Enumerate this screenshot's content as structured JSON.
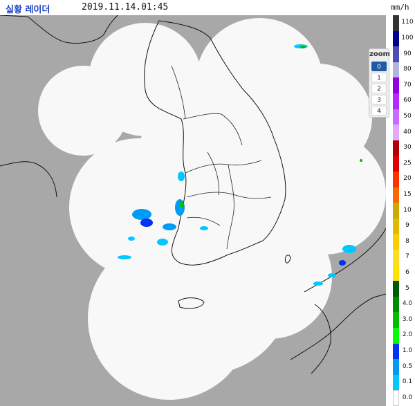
{
  "header": {
    "title": "실황 레이더",
    "timestamp": "2019.11.14.01:45",
    "unit": "mm/h"
  },
  "zoom": {
    "title": "zoom",
    "levels": [
      "0",
      "1",
      "2",
      "3",
      "4"
    ],
    "active_level": "0"
  },
  "legend": [
    {
      "label": "110",
      "color": "#333333"
    },
    {
      "label": "100",
      "color": "#000390"
    },
    {
      "label": "90",
      "color": "#4c4eb1"
    },
    {
      "label": "80",
      "color": "#b3b4de"
    },
    {
      "label": "70",
      "color": "#9300e4"
    },
    {
      "label": "60",
      "color": "#b329ff"
    },
    {
      "label": "50",
      "color": "#c969ff"
    },
    {
      "label": "40",
      "color": "#e0a9ff"
    },
    {
      "label": "30",
      "color": "#b40000"
    },
    {
      "label": "25",
      "color": "#e00000"
    },
    {
      "label": "20",
      "color": "#ff3300"
    },
    {
      "label": "15",
      "color": "#ff6600"
    },
    {
      "label": "10",
      "color": "#ccaa00"
    },
    {
      "label": "9",
      "color": "#e0b900"
    },
    {
      "label": "8",
      "color": "#f9cd00"
    },
    {
      "label": "7",
      "color": "#ffdc1f"
    },
    {
      "label": "6",
      "color": "#ffe100"
    },
    {
      "label": "5",
      "color": "#005a00"
    },
    {
      "label": "4.0",
      "color": "#008c00"
    },
    {
      "label": "3.0",
      "color": "#00be00"
    },
    {
      "label": "2.0",
      "color": "#00ff00"
    },
    {
      "label": "1.0",
      "color": "#0033f5"
    },
    {
      "label": "0.5",
      "color": "#009bf5"
    },
    {
      "label": "0.1",
      "color": "#00c8ff"
    },
    {
      "label": "0.0",
      "color": "#ffffff"
    }
  ],
  "colors": {
    "out_of_range": "#a8a8a8",
    "coverage": "#f8f8f8",
    "border_lines": "#111111",
    "echo_weak": "#00c8ff",
    "echo_light": "#009bf5",
    "echo_moderate": "#0033f5",
    "echo_green": "#00be00"
  }
}
